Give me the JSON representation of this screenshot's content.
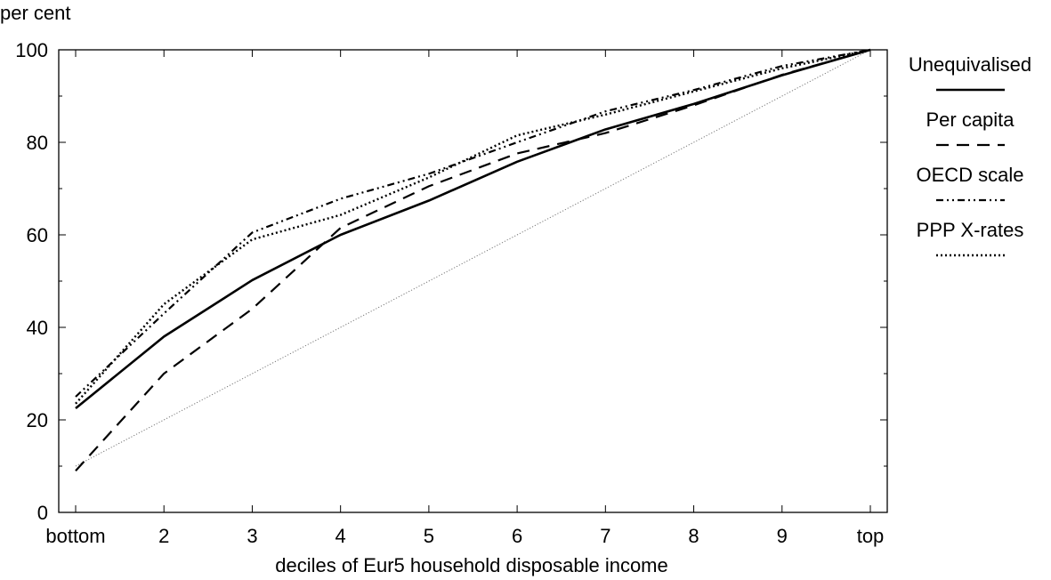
{
  "chart_data": {
    "type": "line",
    "ylabel": "per cent",
    "xlabel": "deciles of Eur5 household disposable income",
    "categories": [
      "bottom",
      "2",
      "3",
      "4",
      "5",
      "6",
      "7",
      "8",
      "9",
      "top"
    ],
    "ylim": [
      0,
      100
    ],
    "yticks": [
      "0",
      "20",
      "40",
      "60",
      "80",
      "100"
    ],
    "grid": false,
    "legend_position": "right",
    "series": [
      {
        "name": "Unequivalised",
        "style": "solid",
        "values": [
          22.5,
          38,
          50.2,
          60,
          67.4,
          75.8,
          82.8,
          88.3,
          94.5,
          100
        ]
      },
      {
        "name": "Per capita",
        "style": "dashed",
        "values": [
          9,
          30,
          44,
          61.5,
          70.5,
          77.6,
          82.0,
          88.0,
          94.6,
          100
        ]
      },
      {
        "name": "OECD scale",
        "style": "dash-dot",
        "values": [
          25,
          43,
          60.5,
          67.8,
          73.2,
          80,
          86.7,
          91.3,
          96.5,
          100
        ]
      },
      {
        "name": "PPP X-rates",
        "style": "dotted",
        "values": [
          23.5,
          45,
          59,
          64.3,
          72.4,
          81.5,
          86.0,
          91.0,
          96.0,
          100
        ]
      }
    ],
    "reference_line": {
      "style": "thin-dotted",
      "values": [
        10,
        20,
        30,
        40,
        50,
        60,
        70,
        80,
        90,
        100
      ]
    }
  }
}
